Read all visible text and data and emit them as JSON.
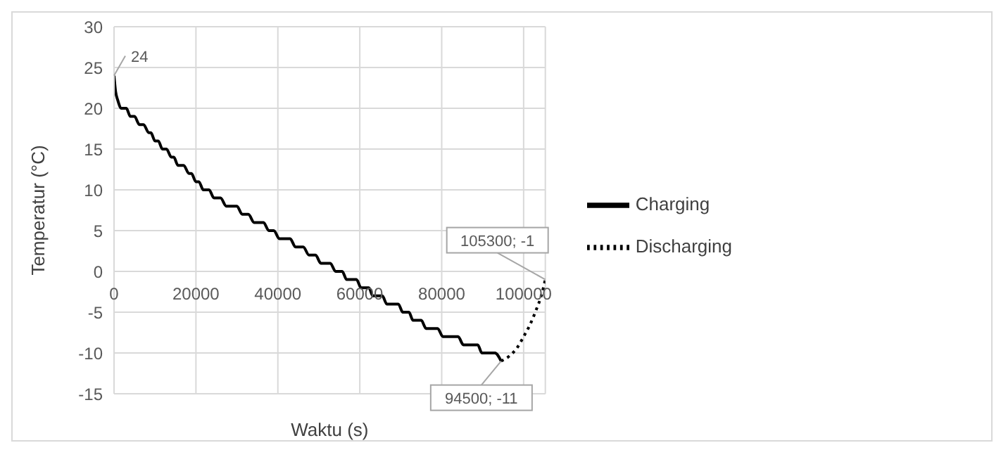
{
  "chart_data": {
    "type": "line",
    "xlabel": "Waktu (s)",
    "ylabel": "Temperatur (°C)",
    "xlim": [
      0,
      105300
    ],
    "xticks": [
      0,
      20000,
      40000,
      60000,
      80000,
      100000
    ],
    "ylim": [
      -15,
      30
    ],
    "yticks": [
      -15,
      -10,
      -5,
      0,
      5,
      10,
      15,
      20,
      25,
      30
    ],
    "grid": true,
    "legend": "right",
    "marker": "none",
    "series": [
      {
        "name": "Charging",
        "color": "#000000",
        "line_style": "solid",
        "x": [
          0,
          400,
          900,
          1800,
          3000,
          4000,
          5000,
          6200,
          7200,
          8500,
          9000,
          10000,
          10800,
          11800,
          12800,
          14000,
          14600,
          15600,
          17000,
          18300,
          18900,
          20000,
          20700,
          21800,
          23200,
          24400,
          26000,
          27400,
          30000,
          31300,
          32800,
          34200,
          36500,
          37800,
          39000,
          40400,
          43000,
          44300,
          46200,
          47600,
          49200,
          50500,
          52800,
          54100,
          55700,
          56800,
          59200,
          60300,
          62200,
          63200,
          65500,
          66600,
          69400,
          70500,
          72000,
          73000,
          75000,
          76200,
          79000,
          80300,
          84000,
          85300,
          88800,
          89800,
          93000,
          94500
        ],
        "values": [
          24,
          22,
          21,
          20,
          20,
          19,
          19,
          18,
          18,
          17,
          17,
          16,
          16,
          15,
          15,
          14,
          14,
          13,
          13,
          12,
          12,
          11,
          11,
          10,
          10,
          9,
          9,
          8,
          8,
          7,
          7,
          6,
          6,
          5,
          5,
          4,
          4,
          3,
          3,
          2,
          2,
          1,
          1,
          0,
          0,
          -1,
          -1,
          -2,
          -2,
          -3,
          -3,
          -4,
          -4,
          -5,
          -5,
          -6,
          -6,
          -7,
          -7,
          -8,
          -8,
          -9,
          -9,
          -10,
          -10,
          -11
        ]
      },
      {
        "name": "Discharging",
        "color": "#000000",
        "line_style": "dotted",
        "x": [
          94500,
          96700,
          98500,
          100000,
          101500,
          103000,
          104300,
          105300
        ],
        "values": [
          -11,
          -10.3,
          -9.3,
          -8,
          -6.6,
          -4.8,
          -3,
          -1
        ]
      }
    ],
    "annotations": [
      {
        "text": "24",
        "x": 0,
        "y": 24
      },
      {
        "text": "105300; -1",
        "x": 105300,
        "y": -1
      },
      {
        "text": "94500; -11",
        "x": 94500,
        "y": -11
      }
    ]
  }
}
